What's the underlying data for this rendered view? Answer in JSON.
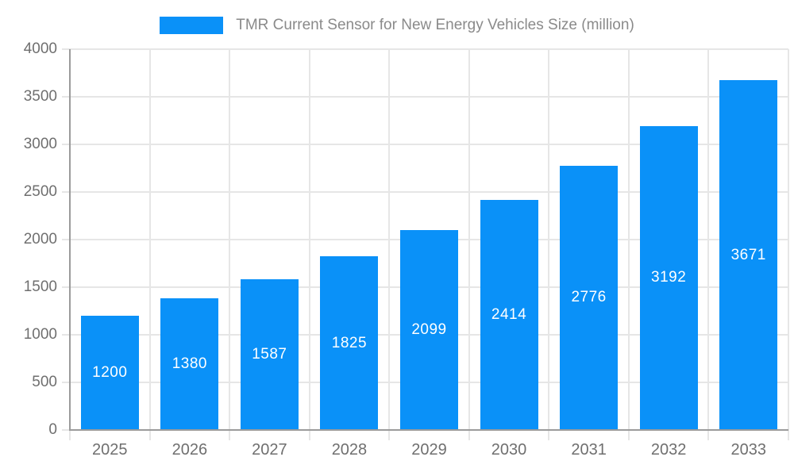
{
  "legend": {
    "label": "TMR Current Sensor for New Energy Vehicles Size (million)"
  },
  "chart_data": {
    "type": "bar",
    "title": "TMR Current Sensor for New Energy Vehicles Size (million)",
    "categories": [
      "2025",
      "2026",
      "2027",
      "2028",
      "2029",
      "2030",
      "2031",
      "2032",
      "2033"
    ],
    "values": [
      1200,
      1380,
      1587,
      1825,
      2099,
      2414,
      2776,
      3192,
      3671
    ],
    "xlabel": "",
    "ylabel": "",
    "ylim": [
      0,
      4000
    ],
    "ytick_step": 500,
    "yticks": [
      0,
      500,
      1000,
      1500,
      2000,
      2500,
      3000,
      3500,
      4000
    ],
    "legend_position": "top-center",
    "grid": true,
    "value_labels": "inside-center"
  },
  "colors": {
    "bar": "#0A91F8",
    "bar_label": "#ffffff",
    "axis_line": "#9b9b9b",
    "grid_line": "#e6e6e6",
    "tick_label": "#6f6f6f",
    "legend_text": "#8a8a8a",
    "background": "#ffffff"
  }
}
